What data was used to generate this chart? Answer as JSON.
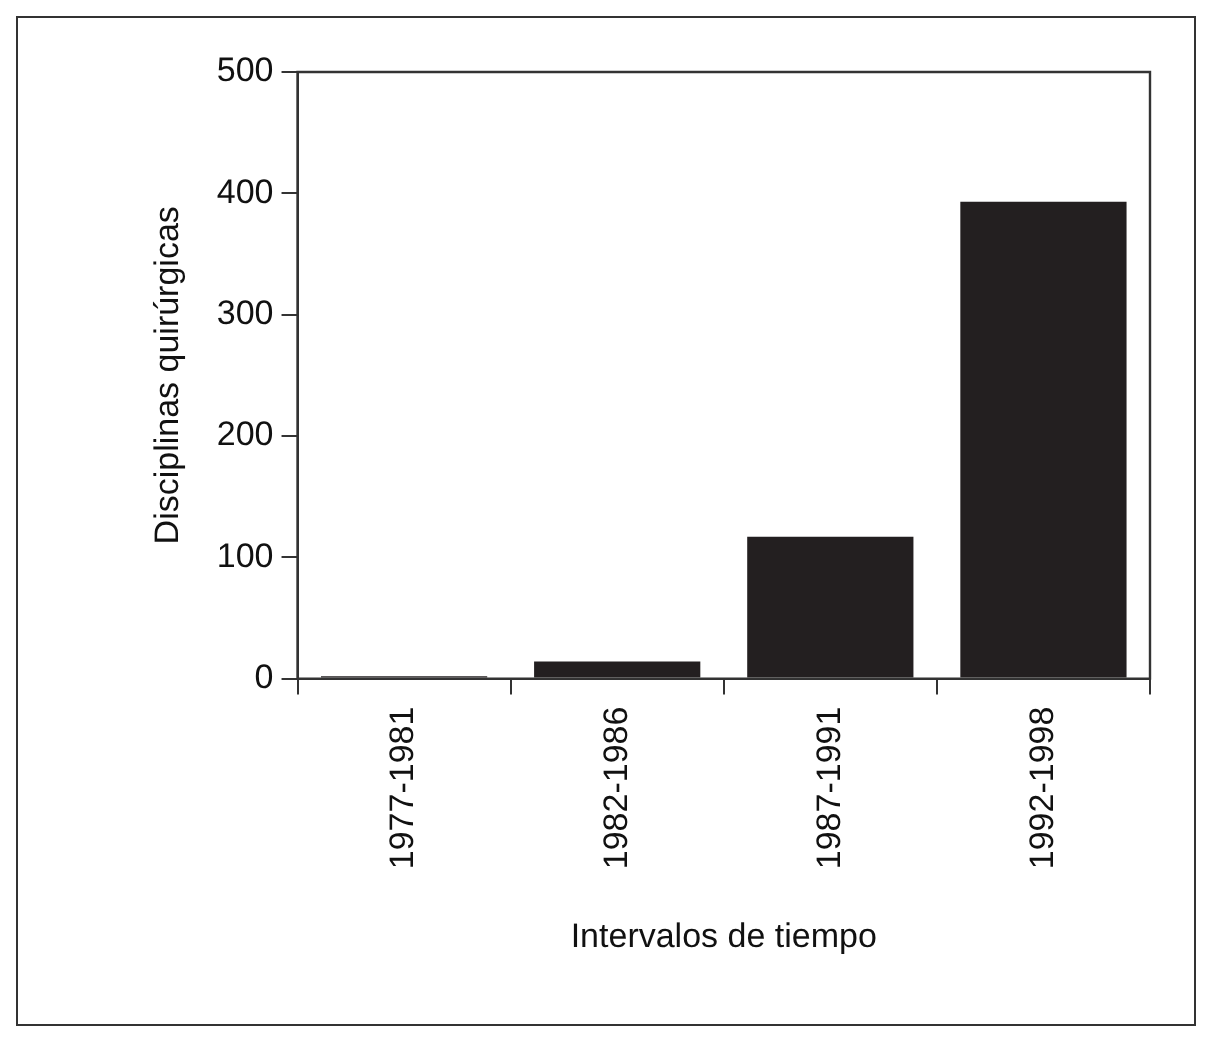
{
  "chart_data": {
    "type": "bar",
    "xlabel": "Intervalos de tiempo",
    "ylabel": "Disciplinas quirúrgicas",
    "categories": [
      "1977-1981",
      "1982-1986",
      "1987-1991",
      "1992-1998"
    ],
    "values": [
      2,
      14,
      117,
      393
    ],
    "color": "#231f20",
    "ylim": [
      0,
      500
    ],
    "yticks": [
      0,
      100,
      200,
      300,
      400,
      500
    ],
    "grid": false,
    "legend": false
  }
}
